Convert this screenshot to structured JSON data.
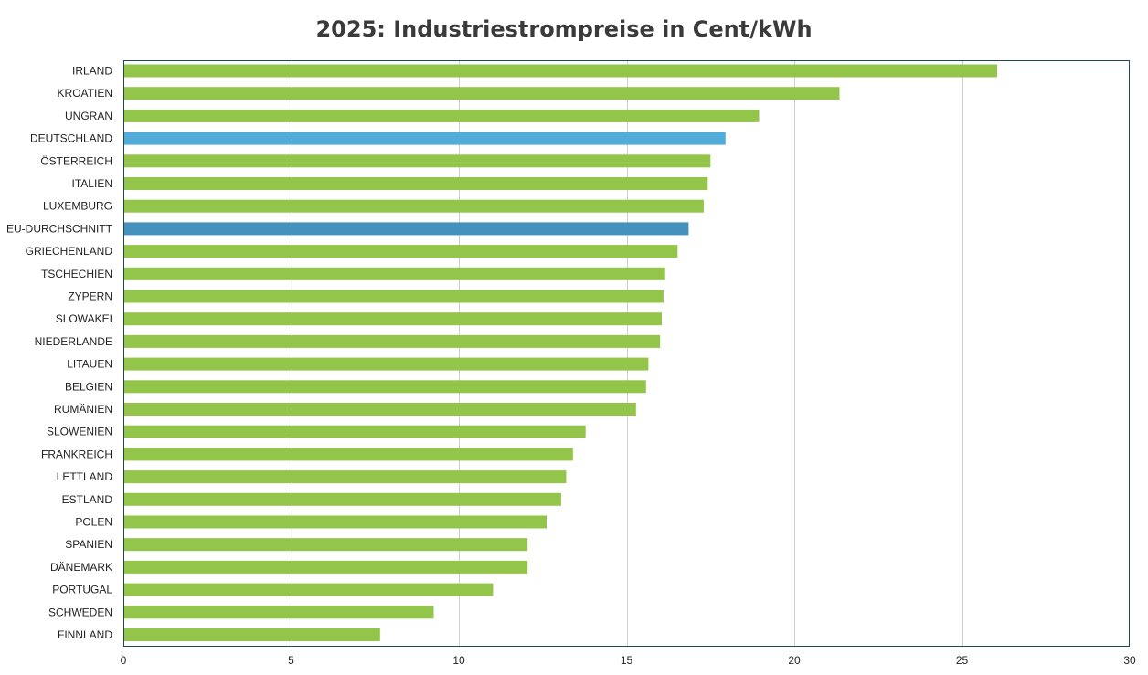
{
  "chart_data": {
    "type": "bar",
    "orientation": "horizontal",
    "title": "2025: Industriestrompreise in Cent/kWh",
    "xlabel": "",
    "ylabel": "",
    "xlim": [
      0,
      30
    ],
    "x_ticks": [
      0,
      5,
      10,
      15,
      20,
      25,
      30
    ],
    "grid": true,
    "categories": [
      "IRLAND",
      "KROATIEN",
      "UNGRAN",
      "DEUTSCHLAND",
      "ÖSTERREICH",
      "ITALIEN",
      "LUXEMBURG",
      "EU-DURCHSCHNITT",
      "GRIECHENLAND",
      "TSCHECHIEN",
      "ZYPERN",
      "SLOWAKEI",
      "NIEDERLANDE",
      "LITAUEN",
      "BELGIEN",
      "RUMÄNIEN",
      "SLOWENIEN",
      "FRANKREICH",
      "LETTLAND",
      "ESTLAND",
      "POLEN",
      "SPANIEN",
      "DÄNEMARK",
      "PORTUGAL",
      "SCHWEDEN",
      "FINNLAND"
    ],
    "values": [
      26.05,
      21.35,
      18.95,
      17.95,
      17.5,
      17.42,
      17.3,
      16.85,
      16.52,
      16.15,
      16.1,
      16.05,
      16.0,
      15.65,
      15.58,
      15.28,
      13.78,
      13.4,
      13.2,
      13.05,
      12.62,
      12.05,
      12.05,
      11.02,
      9.25,
      7.65
    ],
    "colors": {
      "default": "#93c54b",
      "highlight": "#52acd9",
      "average": "#4591bd",
      "axis": "#1e4a57",
      "grid": "#cfcfcf",
      "title": "#3a3a3a"
    },
    "highlights": {
      "DEUTSCHLAND": "highlight",
      "EU-DURCHSCHNITT": "average"
    }
  }
}
